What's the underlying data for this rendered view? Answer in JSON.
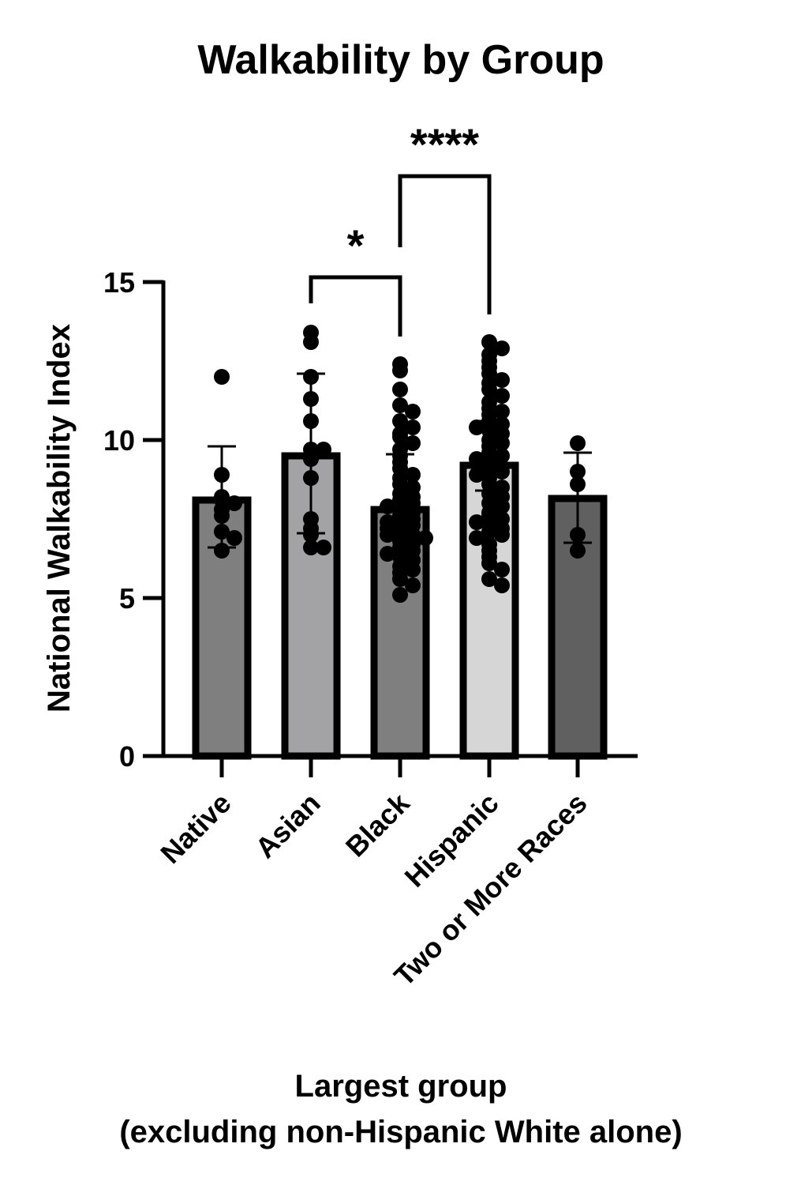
{
  "chart_data": {
    "type": "bar",
    "title": "Walkability by Group",
    "ylabel": "National Walkability  Index",
    "xlabel_lines": [
      "Largest group",
      "(excluding non-Hispanic White alone)"
    ],
    "ylim": [
      0,
      15
    ],
    "yticks": [
      0,
      5,
      10,
      15
    ],
    "ytick_labels": [
      "0",
      "5",
      "10",
      "15"
    ],
    "grid": false,
    "legend": "none",
    "categories": [
      "Native",
      "Asian",
      "Black",
      "Hispanic",
      "Two or More Races"
    ],
    "bar_colors": [
      "#7f7f7f",
      "#a3a3a6",
      "#7f7f7f",
      "#d6d6d6",
      "#606060"
    ],
    "means": [
      8.1,
      9.5,
      7.8,
      9.2,
      8.15
    ],
    "error_low": [
      6.6,
      7.05,
      7.0,
      8.4,
      6.75
    ],
    "error_high": [
      9.8,
      12.1,
      9.55,
      10.6,
      9.6
    ],
    "points": [
      [
        12.0,
        8.9,
        8.1,
        8.2,
        8.0,
        7.8,
        7.6,
        7.1,
        6.9,
        6.5
      ],
      [
        13.4,
        13.1,
        12.0,
        11.3,
        10.6,
        9.7,
        9.4,
        9.7,
        8.8,
        7.5,
        7.2,
        7.0,
        6.6,
        6.6
      ],
      [
        12.4,
        12.2,
        11.6,
        11.1,
        10.9,
        10.6,
        10.4,
        10.2,
        10.1,
        9.9,
        9.7,
        9.5,
        9.3,
        9.1,
        8.9,
        8.8,
        8.6,
        8.5,
        8.3,
        8.2,
        8.1,
        8.0,
        7.9,
        7.8,
        7.7,
        7.6,
        7.5,
        7.4,
        7.3,
        7.3,
        7.2,
        7.1,
        7.0,
        7.0,
        6.9,
        6.8,
        6.7,
        6.6,
        6.5,
        6.4,
        6.3,
        6.2,
        6.0,
        5.9,
        5.8,
        5.6,
        5.4,
        5.1
      ],
      [
        13.1,
        12.9,
        12.7,
        12.5,
        12.3,
        12.1,
        11.9,
        11.8,
        11.6,
        11.4,
        11.2,
        11.0,
        10.9,
        10.8,
        10.6,
        10.5,
        10.4,
        10.3,
        10.2,
        10.0,
        9.9,
        9.8,
        9.6,
        9.5,
        9.4,
        9.3,
        9.1,
        9.0,
        8.9,
        8.8,
        8.6,
        8.5,
        8.3,
        8.2,
        8.0,
        7.9,
        7.7,
        7.6,
        7.5,
        7.4,
        7.3,
        7.2,
        7.1,
        7.0,
        6.9,
        6.7,
        6.5,
        6.3,
        6.1,
        5.9,
        5.6,
        5.4
      ],
      [
        9.9,
        9.0,
        8.6,
        7.0,
        6.5
      ]
    ],
    "significance": [
      {
        "from": 1,
        "to": 2,
        "label": "*"
      },
      {
        "from": 2,
        "to": 3,
        "label": "****"
      }
    ]
  }
}
